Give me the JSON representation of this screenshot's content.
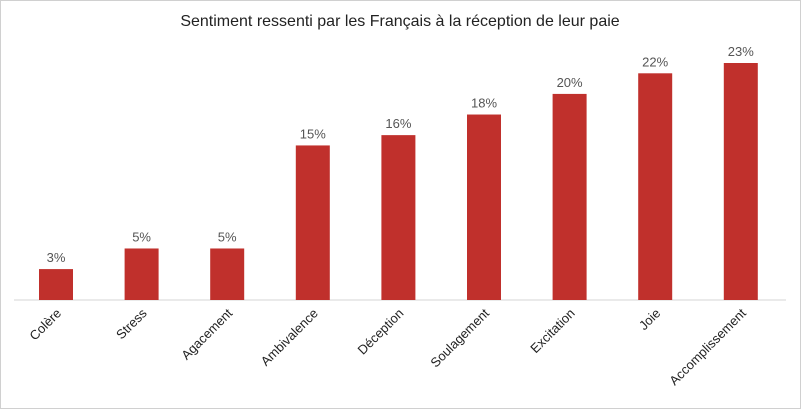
{
  "chart_data": {
    "type": "bar",
    "title": "Sentiment ressenti par les Français à la réception de leur paie",
    "categories": [
      "Colère",
      "Stress",
      "Agacement",
      "Ambivalence",
      "Déception",
      "Soulagement",
      "Excitation",
      "Joie",
      "Accomplissement"
    ],
    "values": [
      3,
      5,
      5,
      15,
      16,
      18,
      20,
      22,
      23
    ],
    "data_labels": [
      "3%",
      "5%",
      "5%",
      "15%",
      "16%",
      "18%",
      "20%",
      "22%",
      "23%"
    ],
    "value_unit": "%",
    "xlabel": "",
    "ylabel": "",
    "ylim": [
      0,
      23
    ],
    "grid": false,
    "legend": "none",
    "bar_color": "#c0302c"
  }
}
